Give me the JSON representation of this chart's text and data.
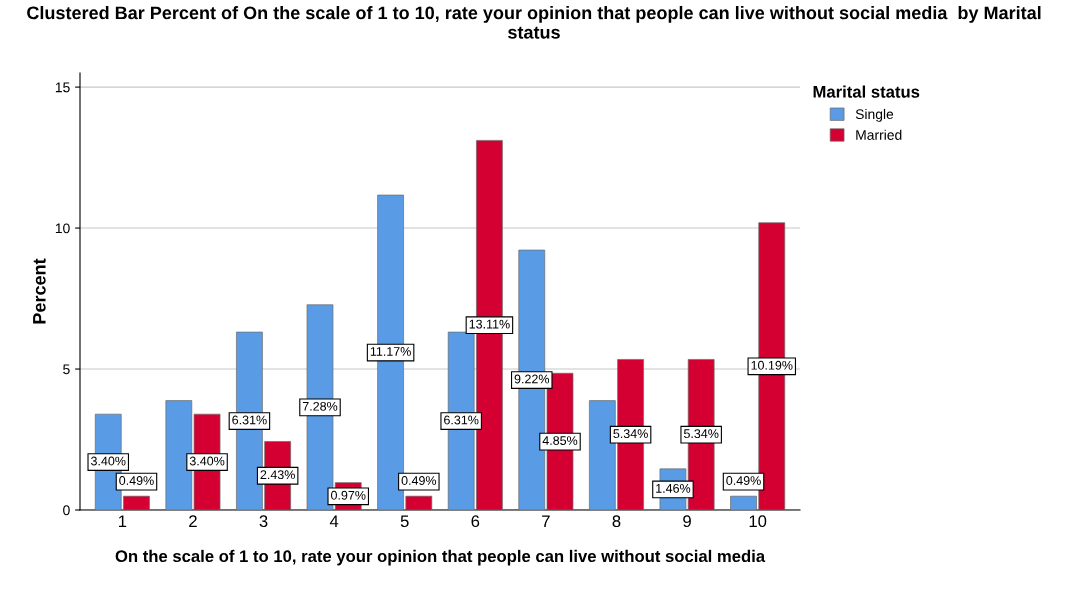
{
  "chart_data": {
    "type": "bar",
    "title": "Clustered Bar Percent of On the scale of 1 to 10, rate your opinion that people can live without social media  by Marital status",
    "xlabel": "On the scale of 1 to 10, rate your opinion that people can live without social media",
    "ylabel": "Percent",
    "legend_title": "Marital status",
    "categories": [
      "1",
      "2",
      "3",
      "4",
      "5",
      "6",
      "7",
      "8",
      "9",
      "10"
    ],
    "series": [
      {
        "name": "Single",
        "color": "#5a9be6",
        "values": [
          3.4,
          3.88,
          6.31,
          7.28,
          11.17,
          6.31,
          9.22,
          3.88,
          1.46,
          0.49
        ],
        "value_labels": [
          "3.40%",
          null,
          "6.31%",
          "7.28%",
          "11.17%",
          "6.31%",
          "9.22%",
          null,
          "1.46%",
          "0.49%"
        ]
      },
      {
        "name": "Married",
        "color": "#d40032",
        "values": [
          0.49,
          3.4,
          2.43,
          0.97,
          0.49,
          13.11,
          4.85,
          5.34,
          5.34,
          10.19
        ],
        "value_labels": [
          "0.49%",
          "3.40%",
          "2.43%",
          "0.97%",
          "0.49%",
          "13.11%",
          "4.85%",
          "5.34%",
          "5.34%",
          "10.19%"
        ]
      }
    ],
    "ylim": [
      0,
      15.5
    ],
    "yticks": [
      0,
      5,
      10,
      15
    ],
    "grid": "y",
    "legend": "top right"
  }
}
